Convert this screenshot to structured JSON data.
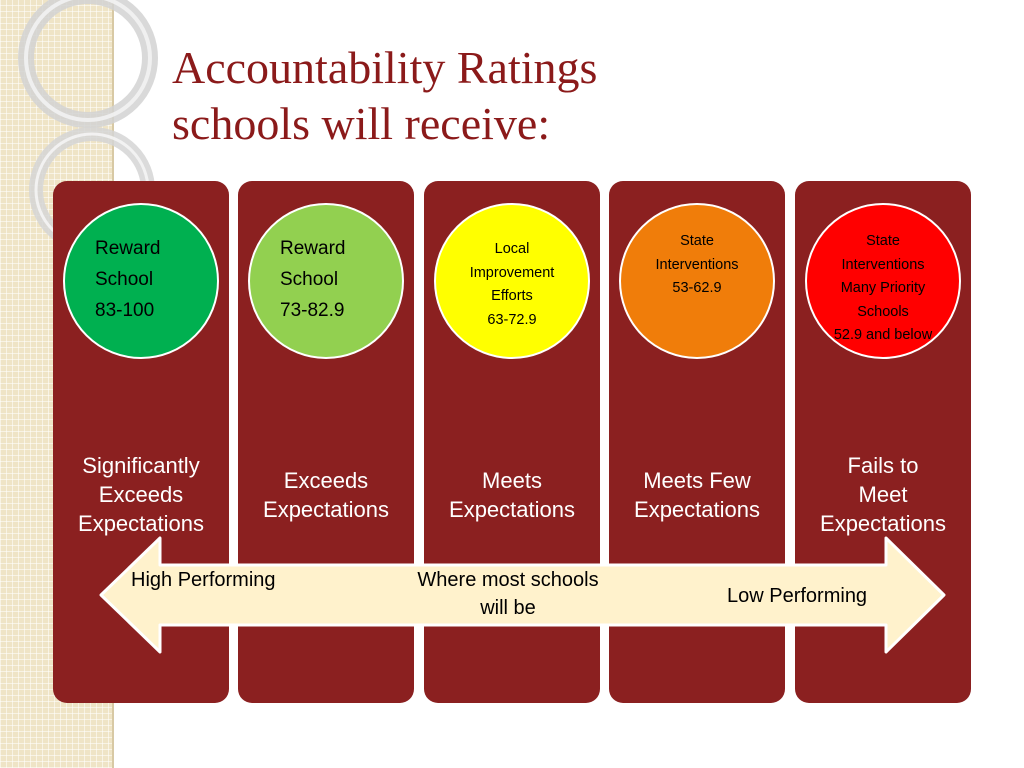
{
  "title": {
    "line1": "Accountability Ratings",
    "line2": "schools will receive:"
  },
  "colors": {
    "column": "#8b2020",
    "title": "#8b1a1a",
    "arrow_fill": "#fff2cc",
    "arrow_stroke": "#ffffff"
  },
  "columns": [
    {
      "circle_color": "#00b050",
      "circle_lines": [
        "Reward",
        "School",
        "83-100"
      ],
      "label_lines": [
        "Significantly",
        "Exceeds",
        "Expectations"
      ]
    },
    {
      "circle_color": "#92d050",
      "circle_lines": [
        "Reward",
        "School",
        "73-82.9"
      ],
      "label_lines": [
        "Exceeds",
        "Expectations"
      ]
    },
    {
      "circle_color": "#ffff00",
      "circle_lines": [
        "Local",
        "Improvement",
        "Efforts",
        "63-72.9"
      ],
      "label_lines": [
        "Meets",
        "Expectations"
      ]
    },
    {
      "circle_color": "#f07d0a",
      "circle_lines": [
        "State",
        "Interventions",
        "53-62.9"
      ],
      "label_lines": [
        "Meets Few",
        "Expectations"
      ]
    },
    {
      "circle_color": "#ff0000",
      "circle_lines": [
        "State",
        "Interventions",
        "Many Priority",
        "Schools",
        "52.9 and below"
      ],
      "label_lines": [
        "Fails to",
        "Meet",
        "Expectations"
      ]
    }
  ],
  "arrow": {
    "left_label": "High Performing",
    "middle_lines": [
      "Where most schools",
      "will be"
    ],
    "right_label": "Low Performing"
  }
}
